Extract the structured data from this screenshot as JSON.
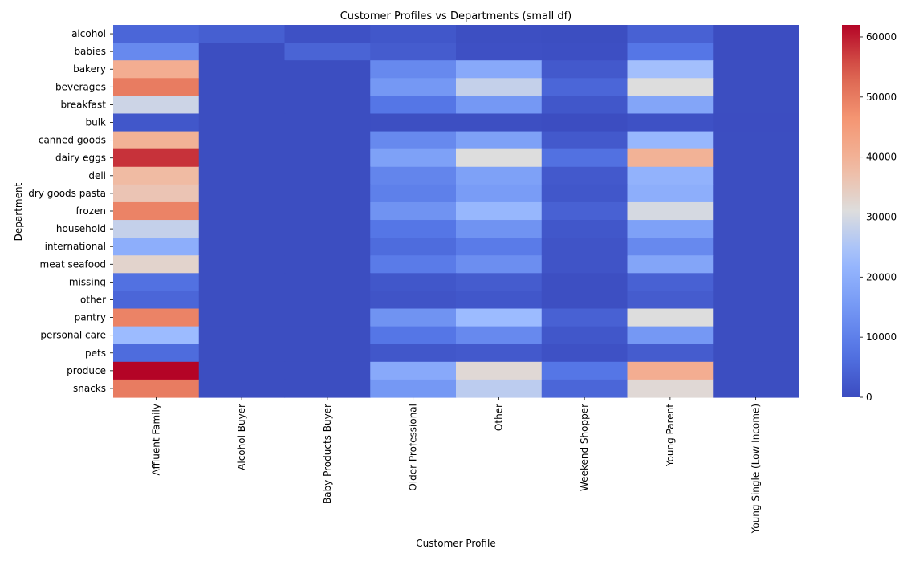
{
  "chart_data": {
    "type": "heatmap",
    "title": "Customer Profiles vs Departments (small df)",
    "xlabel": "Customer Profile",
    "ylabel": "Department",
    "columns": [
      "Affluent Family",
      "Alcohol Buyer",
      "Baby Products Buyer",
      "Older Professional",
      "Other",
      "Weekend Shopper",
      "Young Parent",
      "Young Single (Low Income)"
    ],
    "rows": [
      "alcohol",
      "babies",
      "bakery",
      "beverages",
      "breakfast",
      "bulk",
      "canned goods",
      "dairy eggs",
      "deli",
      "dry goods pasta",
      "frozen",
      "household",
      "international",
      "meat seafood",
      "missing",
      "other",
      "pantry",
      "personal care",
      "pets",
      "produce",
      "snacks"
    ],
    "values": [
      [
        5000,
        3500,
        1000,
        2000,
        500,
        300,
        4000,
        200
      ],
      [
        12000,
        300,
        4500,
        3000,
        800,
        600,
        8000,
        200
      ],
      [
        41000,
        300,
        300,
        12000,
        19000,
        2500,
        24000,
        300
      ],
      [
        50000,
        300,
        300,
        15000,
        28000,
        5000,
        31000,
        300
      ],
      [
        29000,
        300,
        300,
        8000,
        15000,
        2000,
        18000,
        300
      ],
      [
        2000,
        300,
        300,
        500,
        500,
        200,
        1000,
        200
      ],
      [
        40000,
        300,
        300,
        12000,
        17000,
        2500,
        22000,
        300
      ],
      [
        58000,
        300,
        300,
        17000,
        31000,
        7000,
        40000,
        300
      ],
      [
        38000,
        300,
        300,
        11000,
        17000,
        2500,
        21000,
        300
      ],
      [
        36000,
        300,
        300,
        10000,
        16000,
        2000,
        20000,
        300
      ],
      [
        49000,
        300,
        300,
        14000,
        22000,
        4000,
        30000,
        300
      ],
      [
        28000,
        300,
        300,
        8000,
        14000,
        2000,
        17000,
        300
      ],
      [
        20000,
        300,
        300,
        6000,
        9000,
        1500,
        12000,
        300
      ],
      [
        33000,
        300,
        300,
        9000,
        13000,
        1500,
        18000,
        300
      ],
      [
        7000,
        300,
        300,
        2000,
        3000,
        500,
        4000,
        300
      ],
      [
        5000,
        300,
        300,
        1500,
        2000,
        500,
        3000,
        300
      ],
      [
        49000,
        300,
        300,
        14000,
        23000,
        4000,
        31000,
        300
      ],
      [
        23000,
        300,
        300,
        8000,
        12000,
        2000,
        15000,
        300
      ],
      [
        6000,
        300,
        300,
        2000,
        2500,
        1000,
        3000,
        300
      ],
      [
        62000,
        300,
        300,
        19000,
        32000,
        8000,
        41000,
        300
      ],
      [
        50000,
        300,
        300,
        15000,
        27000,
        5000,
        32000,
        300
      ]
    ],
    "vmin": 0,
    "vmax": 62000,
    "colormap": "coolwarm",
    "colorbar_ticks": [
      0,
      10000,
      20000,
      30000,
      40000,
      50000,
      60000
    ],
    "colorbar_tick_labels": [
      "0",
      "10000",
      "20000",
      "30000",
      "40000",
      "50000",
      "60000"
    ],
    "grid": false
  }
}
